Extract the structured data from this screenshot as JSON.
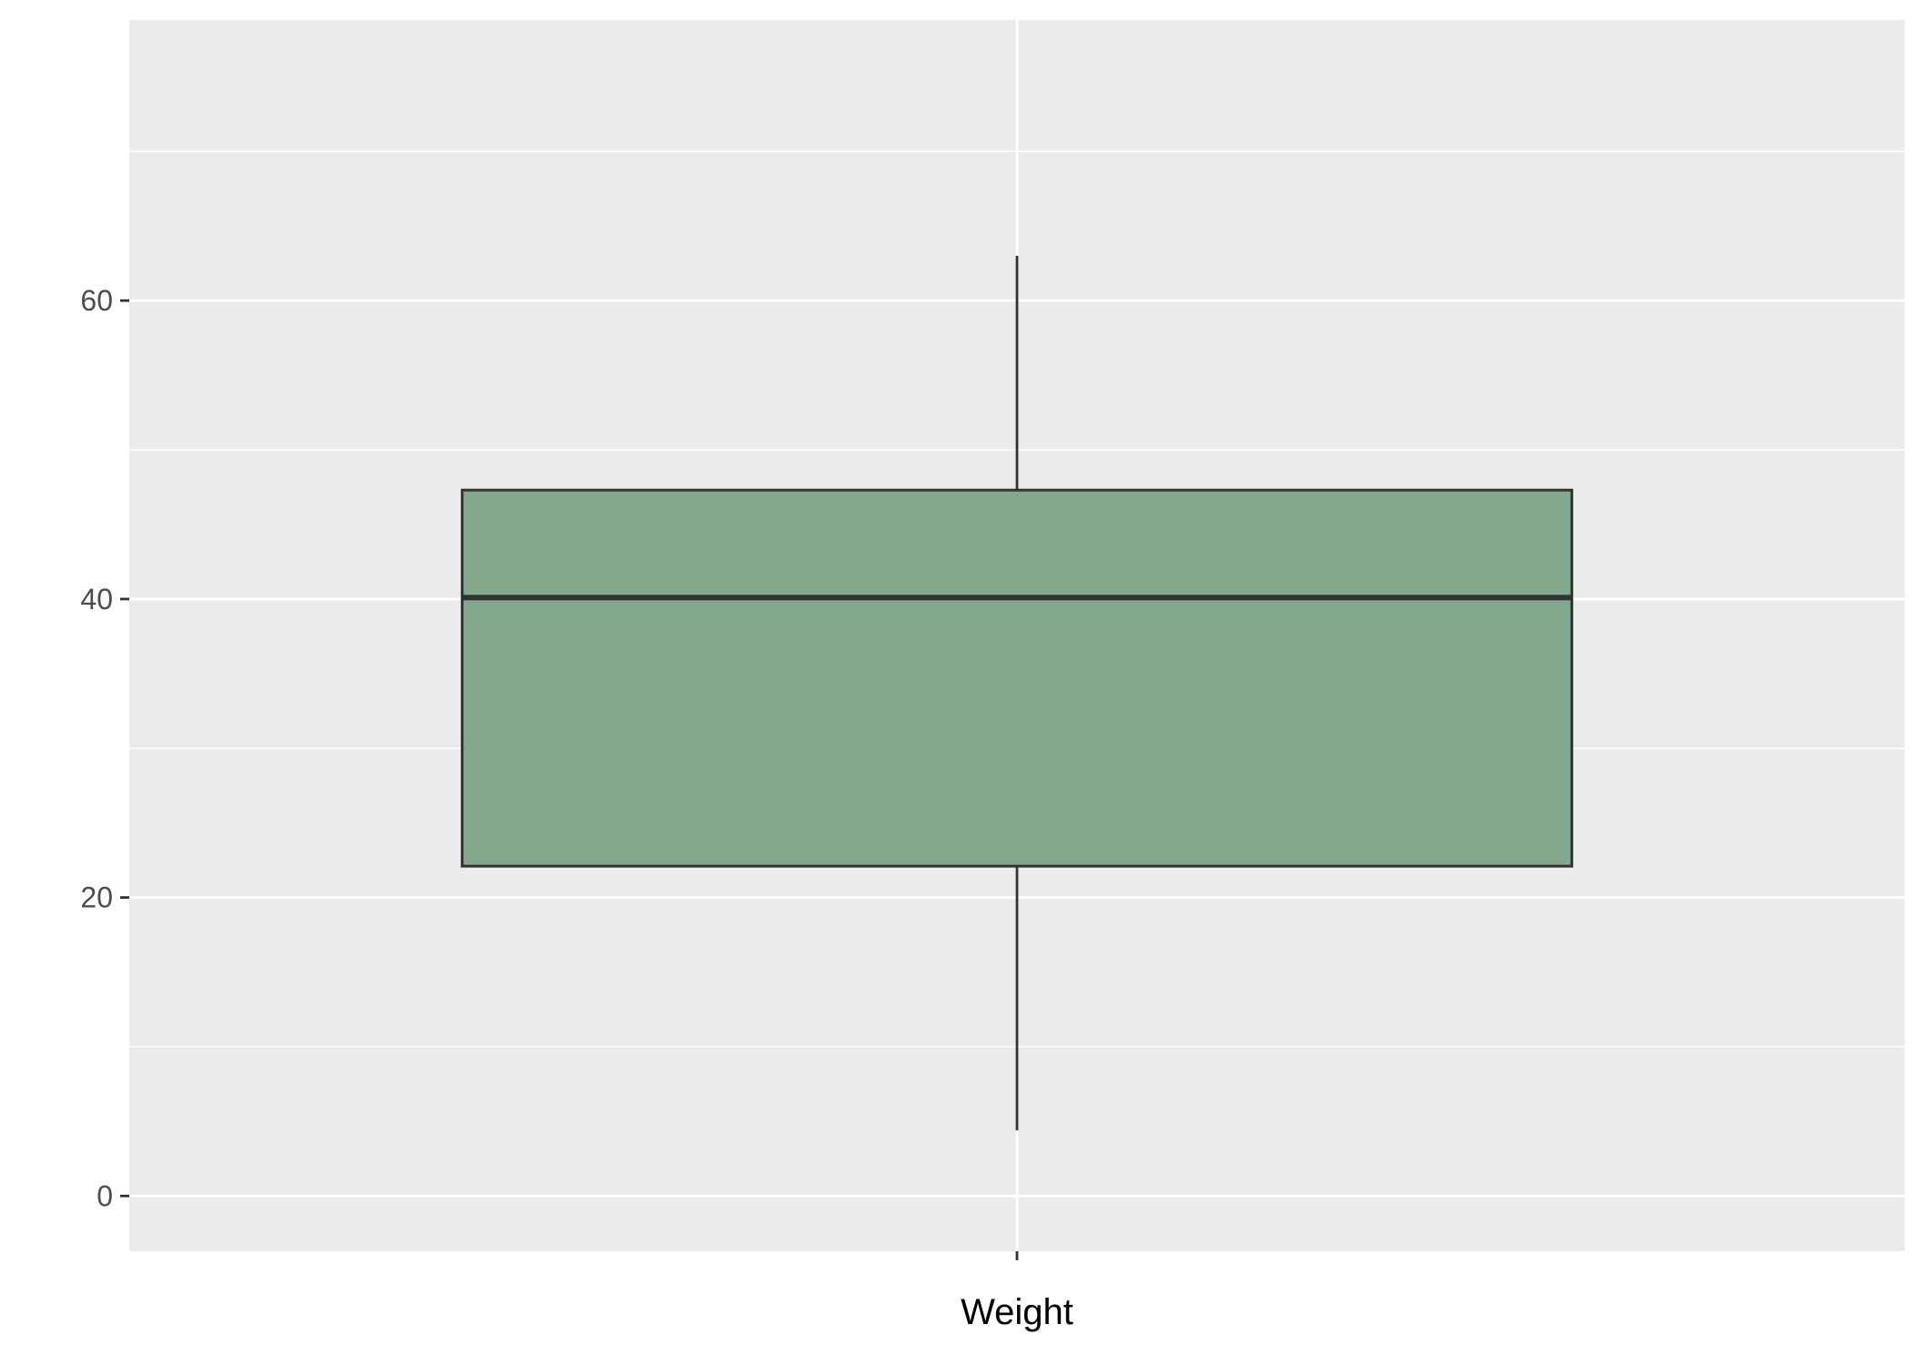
{
  "chart_data": {
    "type": "boxplot",
    "title": "",
    "xlabel": "",
    "ylabel": "",
    "categories": [
      "Weight"
    ],
    "boxes": [
      {
        "category": "Weight",
        "whisker_low": 4.4,
        "q1": 22.1,
        "median": 40.1,
        "q3": 47.3,
        "whisker_high": 63.0
      }
    ],
    "ylim": [
      -3.7,
      78.8
    ],
    "yticks": [
      0,
      20,
      40,
      60
    ],
    "yminor": [
      10,
      30,
      50,
      70
    ],
    "grid": true,
    "legend": "none",
    "colors": {
      "panel": "#ebebeb",
      "grid": "#ffffff",
      "box_fill": "#83a98c",
      "box_stroke": "#333333",
      "tick": "#333333"
    }
  }
}
